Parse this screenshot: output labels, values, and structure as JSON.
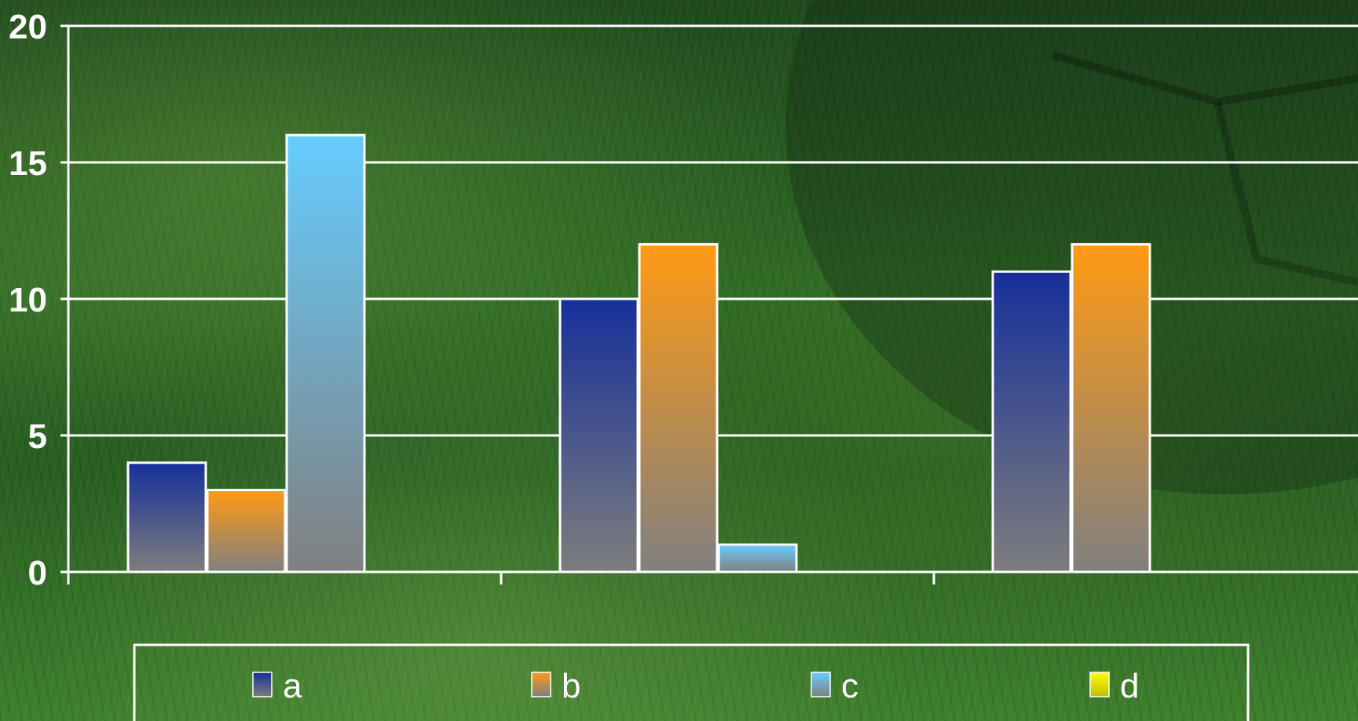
{
  "chart_data": {
    "type": "bar",
    "categories": [
      "",
      "",
      ""
    ],
    "series": [
      {
        "name": "a",
        "values": [
          4,
          10,
          11
        ],
        "color_top": "#16309a",
        "color_bottom": "#7d7d7d"
      },
      {
        "name": "b",
        "values": [
          3,
          12,
          12
        ],
        "color_top": "#ff9a14",
        "color_bottom": "#808080"
      },
      {
        "name": "c",
        "values": [
          16,
          1,
          0
        ],
        "color_top": "#66ccff",
        "color_bottom": "#808080"
      },
      {
        "name": "d",
        "values": [
          0,
          0,
          0
        ],
        "color_top": "#ffff00",
        "color_bottom": "#bfbf00"
      }
    ],
    "title": "",
    "xlabel": "",
    "ylabel": "",
    "ylim": [
      0,
      20
    ],
    "yticks": [
      "0",
      "5",
      "10",
      "15",
      "20"
    ],
    "grid": true,
    "legend_position": "bottom",
    "gridline_color": "#ffffff"
  }
}
